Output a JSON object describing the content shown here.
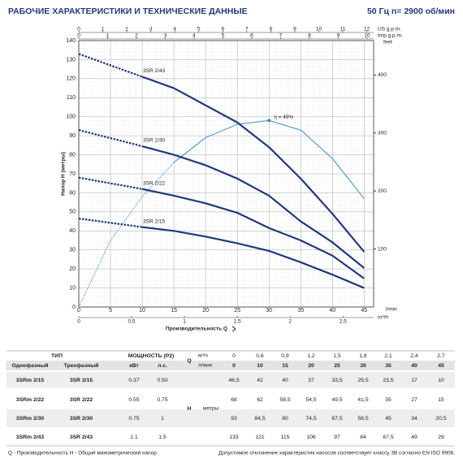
{
  "chart_data": {
    "type": "line",
    "title": "РАБОЧИЕ ХАРАКТЕРИСТИКИ И ТЕХНИЧЕСКИЕ ДАННЫЕ",
    "subtitle": "50 Гц   n= 2900 об/мин",
    "y_label": "Напор H (метры)",
    "x_label": "Производительность Q",
    "x_unit": "l/min",
    "x": [
      0,
      10,
      15,
      20,
      25,
      30,
      35,
      40,
      45
    ],
    "xlim": [
      0,
      46.5
    ],
    "xticks": [
      0,
      5,
      10,
      15,
      20,
      25,
      30,
      35,
      40,
      45
    ],
    "ylim": [
      0,
      140
    ],
    "yticks": [
      0,
      10,
      20,
      30,
      40,
      50,
      60,
      70,
      80,
      90,
      100,
      110,
      120,
      130,
      140
    ],
    "y2_label": "feet",
    "y2lim": [
      0,
      459.3
    ],
    "y2ticks": [
      100,
      200,
      300,
      400
    ],
    "grid": true,
    "series": [
      {
        "name": "3SR 2/43",
        "color": "#1f3a7a",
        "values": [
          133,
          121,
          115,
          106,
          97,
          84,
          67.5,
          49,
          29
        ]
      },
      {
        "name": "3SR 2/30",
        "color": "#1f3a7a",
        "values": [
          93,
          84.5,
          80,
          74.5,
          67.5,
          58.5,
          45,
          34,
          20.5
        ]
      },
      {
        "name": "3SR 2/22",
        "color": "#1f3a7a",
        "values": [
          68,
          62,
          58.5,
          54.5,
          49.5,
          41.5,
          35,
          27,
          15
        ]
      },
      {
        "name": "3SR 2/15",
        "color": "#1f3a7a",
        "values": [
          46.5,
          42,
          40,
          37,
          33.5,
          29.5,
          23.5,
          17,
          10
        ]
      }
    ],
    "efficiency": {
      "label": "η = 49%",
      "color": "#3a8fd0",
      "x": [
        0,
        5,
        10,
        15,
        20,
        25,
        30,
        35,
        40,
        45
      ],
      "values": [
        0,
        35,
        58,
        76,
        89,
        96,
        98,
        93,
        78,
        57
      ]
    },
    "top_axes": [
      {
        "label": "US g.p.m.",
        "xlim": [
          0,
          12.285
        ],
        "xticks": [
          0,
          1,
          2,
          3,
          4,
          5,
          6,
          7,
          8,
          9,
          10,
          11,
          12
        ]
      },
      {
        "label": "Imp g.p.m.",
        "xlim": [
          0,
          10.229
        ],
        "xticks": [
          0,
          1,
          2,
          3,
          4,
          5,
          6,
          7,
          8,
          9,
          10
        ]
      }
    ],
    "bottom_axis2": {
      "label": "m³/h",
      "xlim": [
        0,
        2.79
      ],
      "xticks": [
        0,
        {
          "value": 0.5,
          "label": "0,5"
        },
        1,
        {
          "value": 1.5,
          "label": "1,5"
        },
        2,
        {
          "value": 2.5,
          "label": "2,5"
        }
      ]
    }
  },
  "table": {
    "type": "ТИП",
    "power": "МОЩНОСТЬ (P2)",
    "q": "Q",
    "q_unit1": "м³/ч",
    "q_unit2": "л/мин",
    "single": "Однофазный",
    "three": "Трехфазный",
    "kw": "кВт",
    "hp": "л.с.",
    "h": "H",
    "h_unit": "метры",
    "flows_m3h": [
      "0",
      "0,6",
      "0,9",
      "1,2",
      "1,5",
      "1,8",
      "2,1",
      "2,4",
      "2,7"
    ],
    "flows_lmin": [
      "0",
      "10",
      "15",
      "20",
      "25",
      "30",
      "35",
      "40",
      "45"
    ],
    "rows": [
      [
        "3SRm 2/15",
        "3SR 2/15",
        "0.37",
        "0.50",
        "46,5",
        "42",
        "40",
        "37",
        "33,5",
        "29,5",
        "23,5",
        "17",
        "10"
      ],
      [
        "3SRm 2/22",
        "3SR 2/22",
        "0.55",
        "0.75",
        "68",
        "62",
        "58,5",
        "54,5",
        "49,5",
        "41,5",
        "35",
        "27",
        "15"
      ],
      [
        "3SRm 2/30",
        "3SR 2/30",
        "0.75",
        "1",
        "93",
        "84,5",
        "80",
        "74,5",
        "67,5",
        "58,5",
        "45",
        "34",
        "20,5"
      ],
      [
        "3SRm 2/43",
        "3SR 2/43",
        "1.1",
        "1.5",
        "133",
        "121",
        "115",
        "106",
        "97",
        "84",
        "67,5",
        "49",
        "29"
      ]
    ]
  },
  "notes": {
    "left": "Q - Производительность   H - Общий манометрический напор",
    "right": "Допустимое отклонение характеристик насосов соответствует классу 3B согласно EN ISO 9906."
  }
}
